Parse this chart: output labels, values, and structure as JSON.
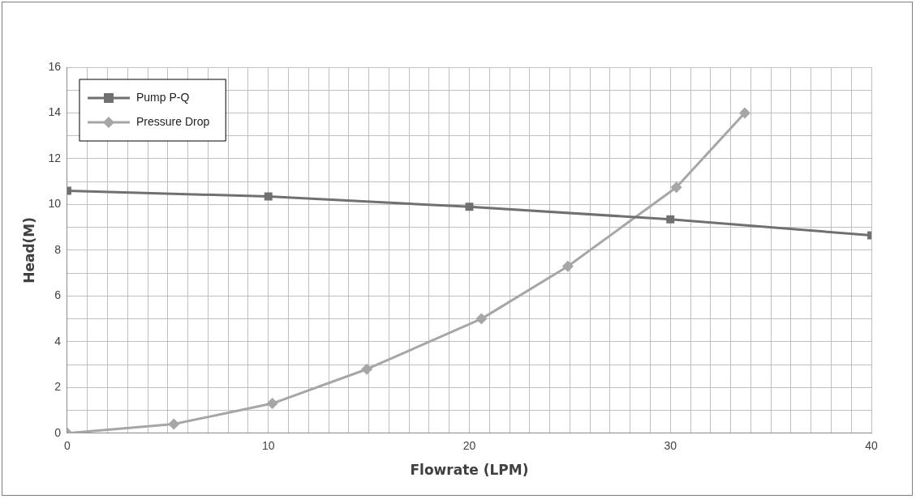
{
  "chart_data": {
    "type": "line",
    "xlabel": "Flowrate (LPM)",
    "ylabel": "Head(M)",
    "xlim": [
      0,
      40
    ],
    "ylim": [
      0,
      16
    ],
    "xticks": [
      0,
      {
        "value": 1,
        "label": null
      },
      {
        "value": 2,
        "label": null
      },
      {
        "value": 3,
        "label": null
      },
      {
        "value": 4,
        "label": null
      },
      {
        "value": 5,
        "label": null
      },
      {
        "value": 6,
        "label": null
      },
      {
        "value": 7,
        "label": null
      },
      {
        "value": 8,
        "label": null
      },
      {
        "value": 9,
        "label": null
      },
      10,
      {
        "value": 11,
        "label": null
      },
      {
        "value": 12,
        "label": null
      },
      {
        "value": 13,
        "label": null
      },
      {
        "value": 14,
        "label": null
      },
      {
        "value": 15,
        "label": null
      },
      {
        "value": 16,
        "label": null
      },
      {
        "value": 17,
        "label": null
      },
      {
        "value": 18,
        "label": null
      },
      {
        "value": 19,
        "label": null
      },
      20,
      {
        "value": 21,
        "label": null
      },
      {
        "value": 22,
        "label": null
      },
      {
        "value": 23,
        "label": null
      },
      {
        "value": 24,
        "label": null
      },
      {
        "value": 25,
        "label": null
      },
      {
        "value": 26,
        "label": null
      },
      {
        "value": 27,
        "label": null
      },
      {
        "value": 28,
        "label": null
      },
      {
        "value": 29,
        "label": null
      },
      30,
      {
        "value": 31,
        "label": null
      },
      {
        "value": 32,
        "label": null
      },
      {
        "value": 33,
        "label": null
      },
      {
        "value": 34,
        "label": null
      },
      {
        "value": 35,
        "label": null
      },
      {
        "value": 36,
        "label": null
      },
      {
        "value": 37,
        "label": null
      },
      {
        "value": 38,
        "label": null
      },
      {
        "value": 39,
        "label": null
      },
      40
    ],
    "yticks": [
      0,
      {
        "value": 1,
        "label": null
      },
      2,
      {
        "value": 3,
        "label": null
      },
      4,
      {
        "value": 5,
        "label": null
      },
      6,
      {
        "value": 7,
        "label": null
      },
      8,
      {
        "value": 9,
        "label": null
      },
      10,
      {
        "value": 11,
        "label": null
      },
      12,
      {
        "value": 13,
        "label": null
      },
      14,
      {
        "value": 15,
        "label": null
      },
      16
    ],
    "grid": true,
    "legend": "top left",
    "series": [
      {
        "name": "Pump P-Q",
        "color": "#707070",
        "marker": "square",
        "x": [
          0,
          10,
          20,
          30,
          40
        ],
        "values": [
          10.6,
          10.35,
          9.9,
          9.35,
          8.65
        ]
      },
      {
        "name": "Pressure Drop",
        "color": "#a6a6a6",
        "marker": "diamond",
        "x": [
          0,
          5.3,
          10.2,
          14.9,
          20.6,
          24.9,
          30.3,
          33.7
        ],
        "values": [
          0,
          0.4,
          1.3,
          2.8,
          5.0,
          7.3,
          10.75,
          14.0
        ]
      }
    ]
  }
}
